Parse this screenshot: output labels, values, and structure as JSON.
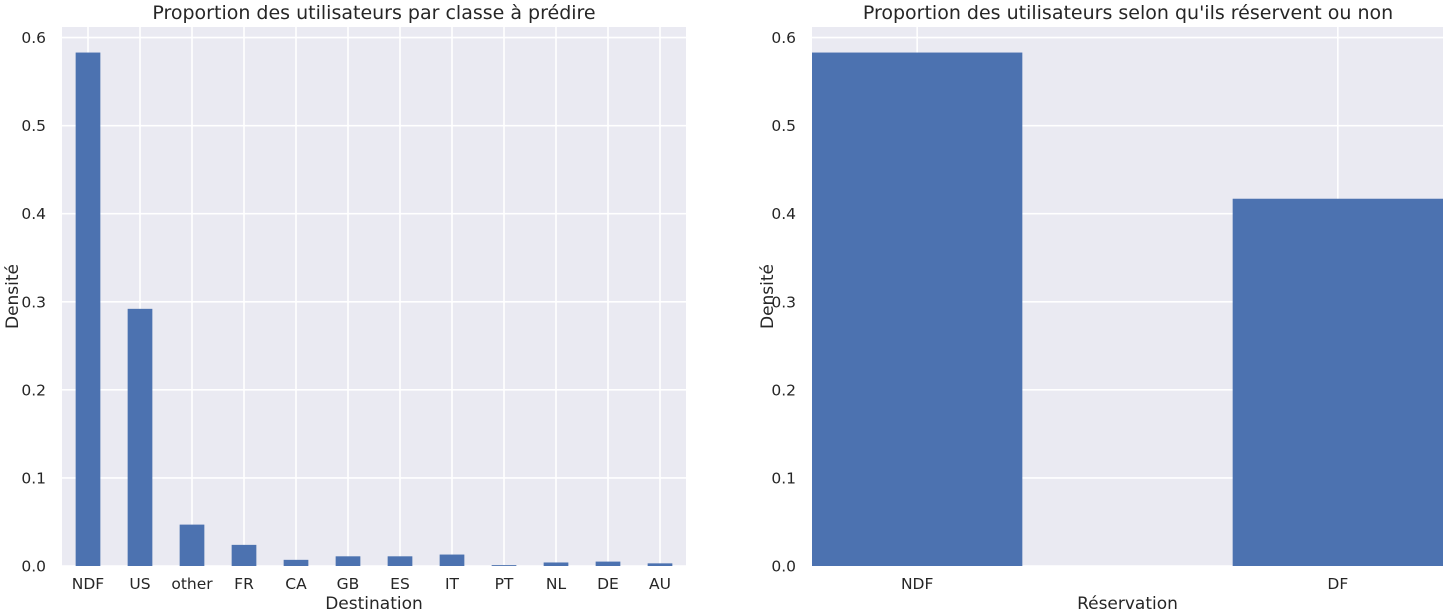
{
  "chart_data": [
    {
      "type": "bar",
      "title": "Proportion des utilisateurs par classe à prédire",
      "xlabel": "Destination",
      "ylabel": "Densité",
      "categories": [
        "NDF",
        "US",
        "other",
        "FR",
        "CA",
        "GB",
        "ES",
        "IT",
        "PT",
        "NL",
        "DE",
        "AU"
      ],
      "values": [
        0.583,
        0.292,
        0.047,
        0.024,
        0.007,
        0.011,
        0.011,
        0.013,
        0.001,
        0.004,
        0.005,
        0.003
      ],
      "yticks": [
        "0.0",
        "0.1",
        "0.2",
        "0.3",
        "0.4",
        "0.5",
        "0.6"
      ],
      "ylim": [
        0,
        0.612
      ],
      "grid": true,
      "bar_color": "#4c72b0",
      "background": "#eaeaf2"
    },
    {
      "type": "bar",
      "title": "Proportion des utilisateurs selon qu'ils réservent ou non",
      "xlabel": "Réservation",
      "ylabel": "Densité",
      "categories": [
        "NDF",
        "DF"
      ],
      "values": [
        0.583,
        0.417
      ],
      "yticks": [
        "0.0",
        "0.1",
        "0.2",
        "0.3",
        "0.4",
        "0.5",
        "0.6"
      ],
      "ylim": [
        0,
        0.612
      ],
      "grid": true,
      "bar_color": "#4c72b0",
      "background": "#eaeaf2"
    }
  ]
}
